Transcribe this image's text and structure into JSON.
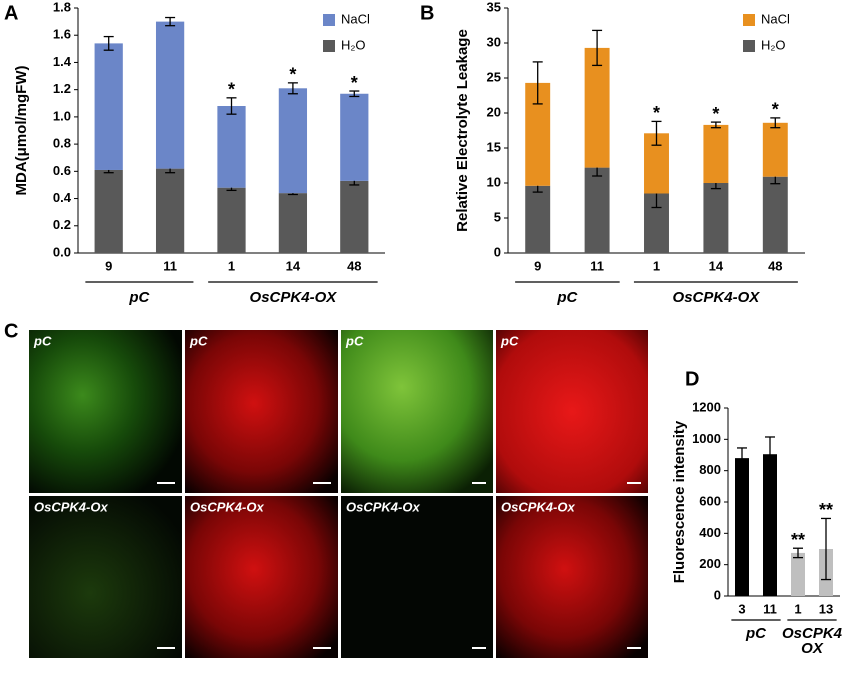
{
  "chart_data": [
    {
      "type": "bar",
      "stacked": true,
      "panel_label": "A",
      "ylabel": "MDA(μmol/mgFW)",
      "categories": [
        "9",
        "11",
        "1",
        "14",
        "48"
      ],
      "series": [
        {
          "name": "NaCl",
          "color": "#6b86c8",
          "values": [
            0.93,
            1.08,
            0.6,
            0.77,
            0.64
          ],
          "errors": [
            0.05,
            0.03,
            0.06,
            0.04,
            0.02
          ]
        },
        {
          "name": "H₂O",
          "color": "#595959",
          "values": [
            0.61,
            0.62,
            0.48,
            0.44,
            0.53
          ],
          "errors": [
            0.02,
            0.03,
            0.02,
            0.01,
            0.03
          ]
        }
      ],
      "annotations": [
        null,
        null,
        "*",
        "*",
        "*"
      ],
      "groups": [
        {
          "label": [
            "pC"
          ],
          "members": [
            "9",
            "11"
          ]
        },
        {
          "label": [
            "OsCPK4-OX"
          ],
          "members": [
            "1",
            "14",
            "48"
          ]
        }
      ],
      "ylim": [
        0,
        1.8
      ],
      "yticks": [
        {
          "value": 0,
          "label": "0.0"
        },
        0.2,
        0.4,
        0.6,
        0.8,
        {
          "value": 1,
          "label": "1.0"
        },
        1.2,
        1.4,
        1.6,
        1.8
      ],
      "legend": "upper right"
    },
    {
      "type": "bar",
      "stacked": true,
      "panel_label": "B",
      "ylabel": "Relative Electrolyte Leakage",
      "categories": [
        "9",
        "11",
        "1",
        "14",
        "48"
      ],
      "series": [
        {
          "name": "NaCl",
          "color": "#e8901f",
          "values": [
            14.7,
            17.1,
            8.6,
            8.3,
            7.7
          ],
          "errors": [
            3.0,
            2.5,
            1.7,
            0.4,
            0.7
          ]
        },
        {
          "name": "H₂O",
          "color": "#595959",
          "values": [
            9.6,
            12.2,
            8.5,
            10.0,
            10.9
          ],
          "errors": [
            0.9,
            1.2,
            2.0,
            0.8,
            1.0
          ]
        }
      ],
      "annotations": [
        null,
        null,
        "*",
        "*",
        "*"
      ],
      "groups": [
        {
          "label": [
            "pC"
          ],
          "members": [
            "9",
            "11"
          ]
        },
        {
          "label": [
            "OsCPK4-OX"
          ],
          "members": [
            "1",
            "14",
            "48"
          ]
        }
      ],
      "ylim": [
        0,
        35
      ],
      "yticks": [
        0,
        5,
        10,
        15,
        20,
        25,
        30,
        35
      ],
      "legend": "upper right"
    },
    {
      "type": "bar",
      "stacked": false,
      "panel_label": "D",
      "ylabel": "Fluorescence intensity",
      "categories": [
        "3",
        "11",
        "1",
        "13"
      ],
      "series": [
        {
          "colors": [
            "#000000",
            "#000000",
            "#bfbfbf",
            "#bfbfbf"
          ],
          "values": [
            880,
            905,
            275,
            300
          ],
          "errors": [
            65,
            110,
            30,
            195
          ]
        }
      ],
      "annotations": [
        null,
        null,
        "**",
        "**"
      ],
      "groups": [
        {
          "label": [
            "pC"
          ],
          "members": [
            "3",
            "11"
          ]
        },
        {
          "label": [
            "OsCPK4",
            "OX"
          ],
          "members": [
            "1",
            "13"
          ]
        }
      ],
      "ylim": [
        0,
        1200
      ],
      "yticks": [
        0,
        200,
        400,
        600,
        800,
        1000,
        1200
      ]
    }
  ],
  "panel_c": {
    "panel_label": "C",
    "images": [
      {
        "label": "pC"
      },
      {
        "label": "pC"
      },
      {
        "label": "pC"
      },
      {
        "label": "pC"
      },
      {
        "label": "OsCPK4-Ox"
      },
      {
        "label": "OsCPK4-Ox"
      },
      {
        "label": "OsCPK4-Ox"
      },
      {
        "label": "OsCPK4-Ox"
      }
    ]
  }
}
